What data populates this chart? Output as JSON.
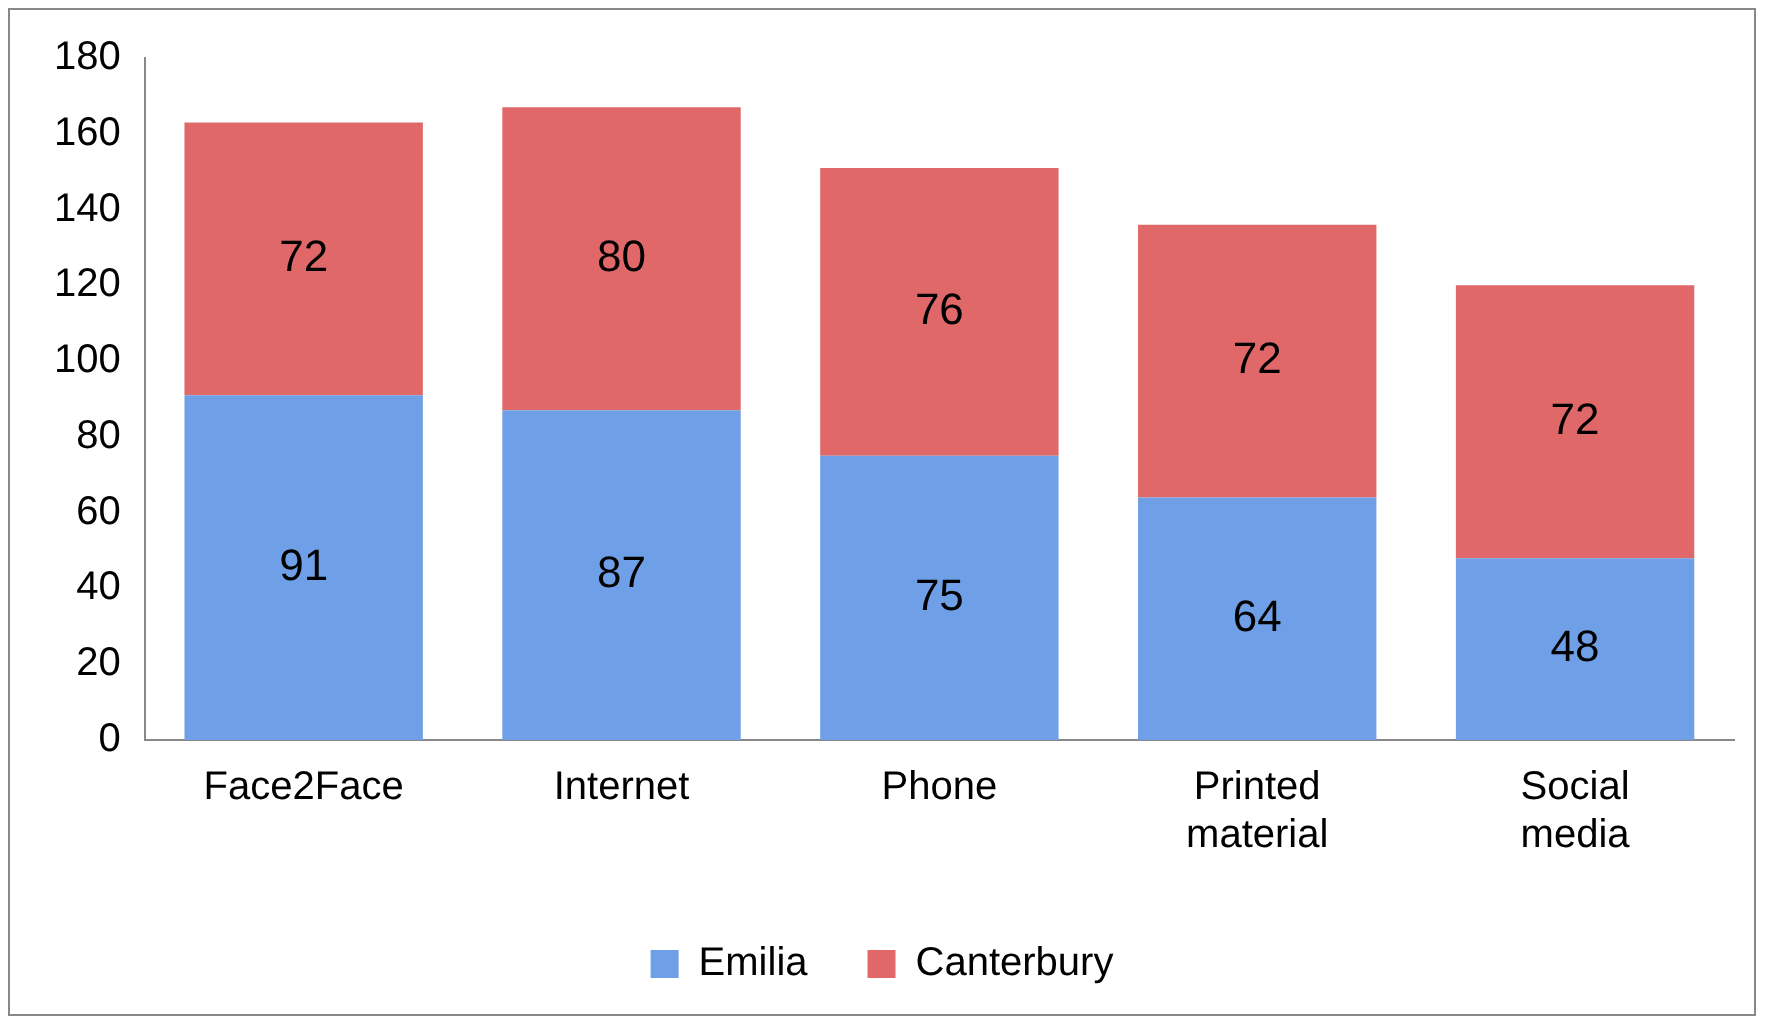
{
  "chart_data": {
    "type": "bar",
    "stacked": true,
    "categories": [
      "Face2Face",
      "Internet",
      "Phone",
      "Printed material",
      "Social media"
    ],
    "series": [
      {
        "name": "Emilia",
        "color": "#6f9fe6",
        "values": [
          91,
          87,
          75,
          64,
          48
        ]
      },
      {
        "name": "Canterbury",
        "color": "#e06868",
        "values": [
          72,
          80,
          76,
          72,
          72
        ]
      }
    ],
    "ylim": [
      0,
      180
    ],
    "yticks": [
      0,
      20,
      40,
      60,
      80,
      100,
      120,
      140,
      160,
      180
    ],
    "grid": false,
    "legend": "bottom",
    "data_labels": true
  }
}
